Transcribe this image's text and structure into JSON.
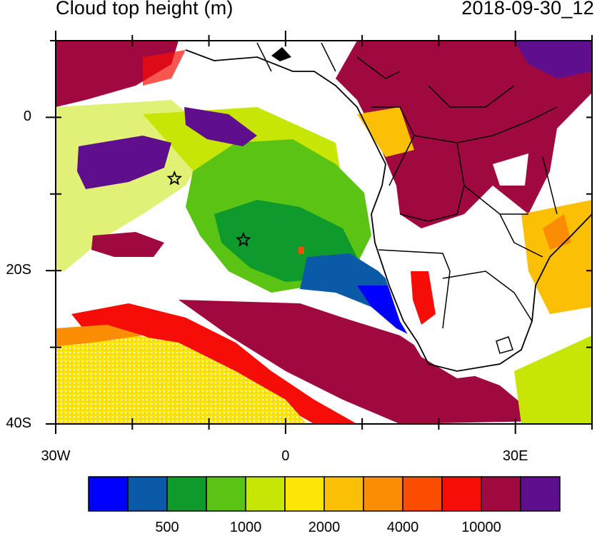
{
  "header": {
    "title": "Cloud top height (m)",
    "datetime": "2018-09-30_12"
  },
  "map": {
    "lat_range": [
      -40,
      10
    ],
    "lon_range": [
      -30,
      40
    ],
    "y_ticks": [
      {
        "lat": 0,
        "label": "0"
      },
      {
        "lat": -20,
        "label": "20S"
      },
      {
        "lat": -40,
        "label": "40S"
      }
    ],
    "x_ticks": [
      {
        "lon": -30,
        "label": "30W"
      },
      {
        "lon": 0,
        "label": "0"
      },
      {
        "lon": 30,
        "label": "30E"
      }
    ],
    "markers": [
      {
        "name": "star",
        "lon": -14.5,
        "lat": -8
      },
      {
        "name": "star",
        "lon": -5.5,
        "lat": -16
      }
    ]
  },
  "colorbar": {
    "colors": [
      "#0000ff",
      "#0a5aa8",
      "#0f9b2c",
      "#5ac314",
      "#c8e605",
      "#fde506",
      "#fbc003",
      "#fa8d04",
      "#fb4d02",
      "#f70d07",
      "#a0093f",
      "#5f0e8c"
    ],
    "labels": [
      {
        "label": "500",
        "boundary": 2
      },
      {
        "label": "1000",
        "boundary": 4
      },
      {
        "label": "2000",
        "boundary": 6
      },
      {
        "label": "4000",
        "boundary": 8
      },
      {
        "label": "10000",
        "boundary": 10
      }
    ]
  }
}
